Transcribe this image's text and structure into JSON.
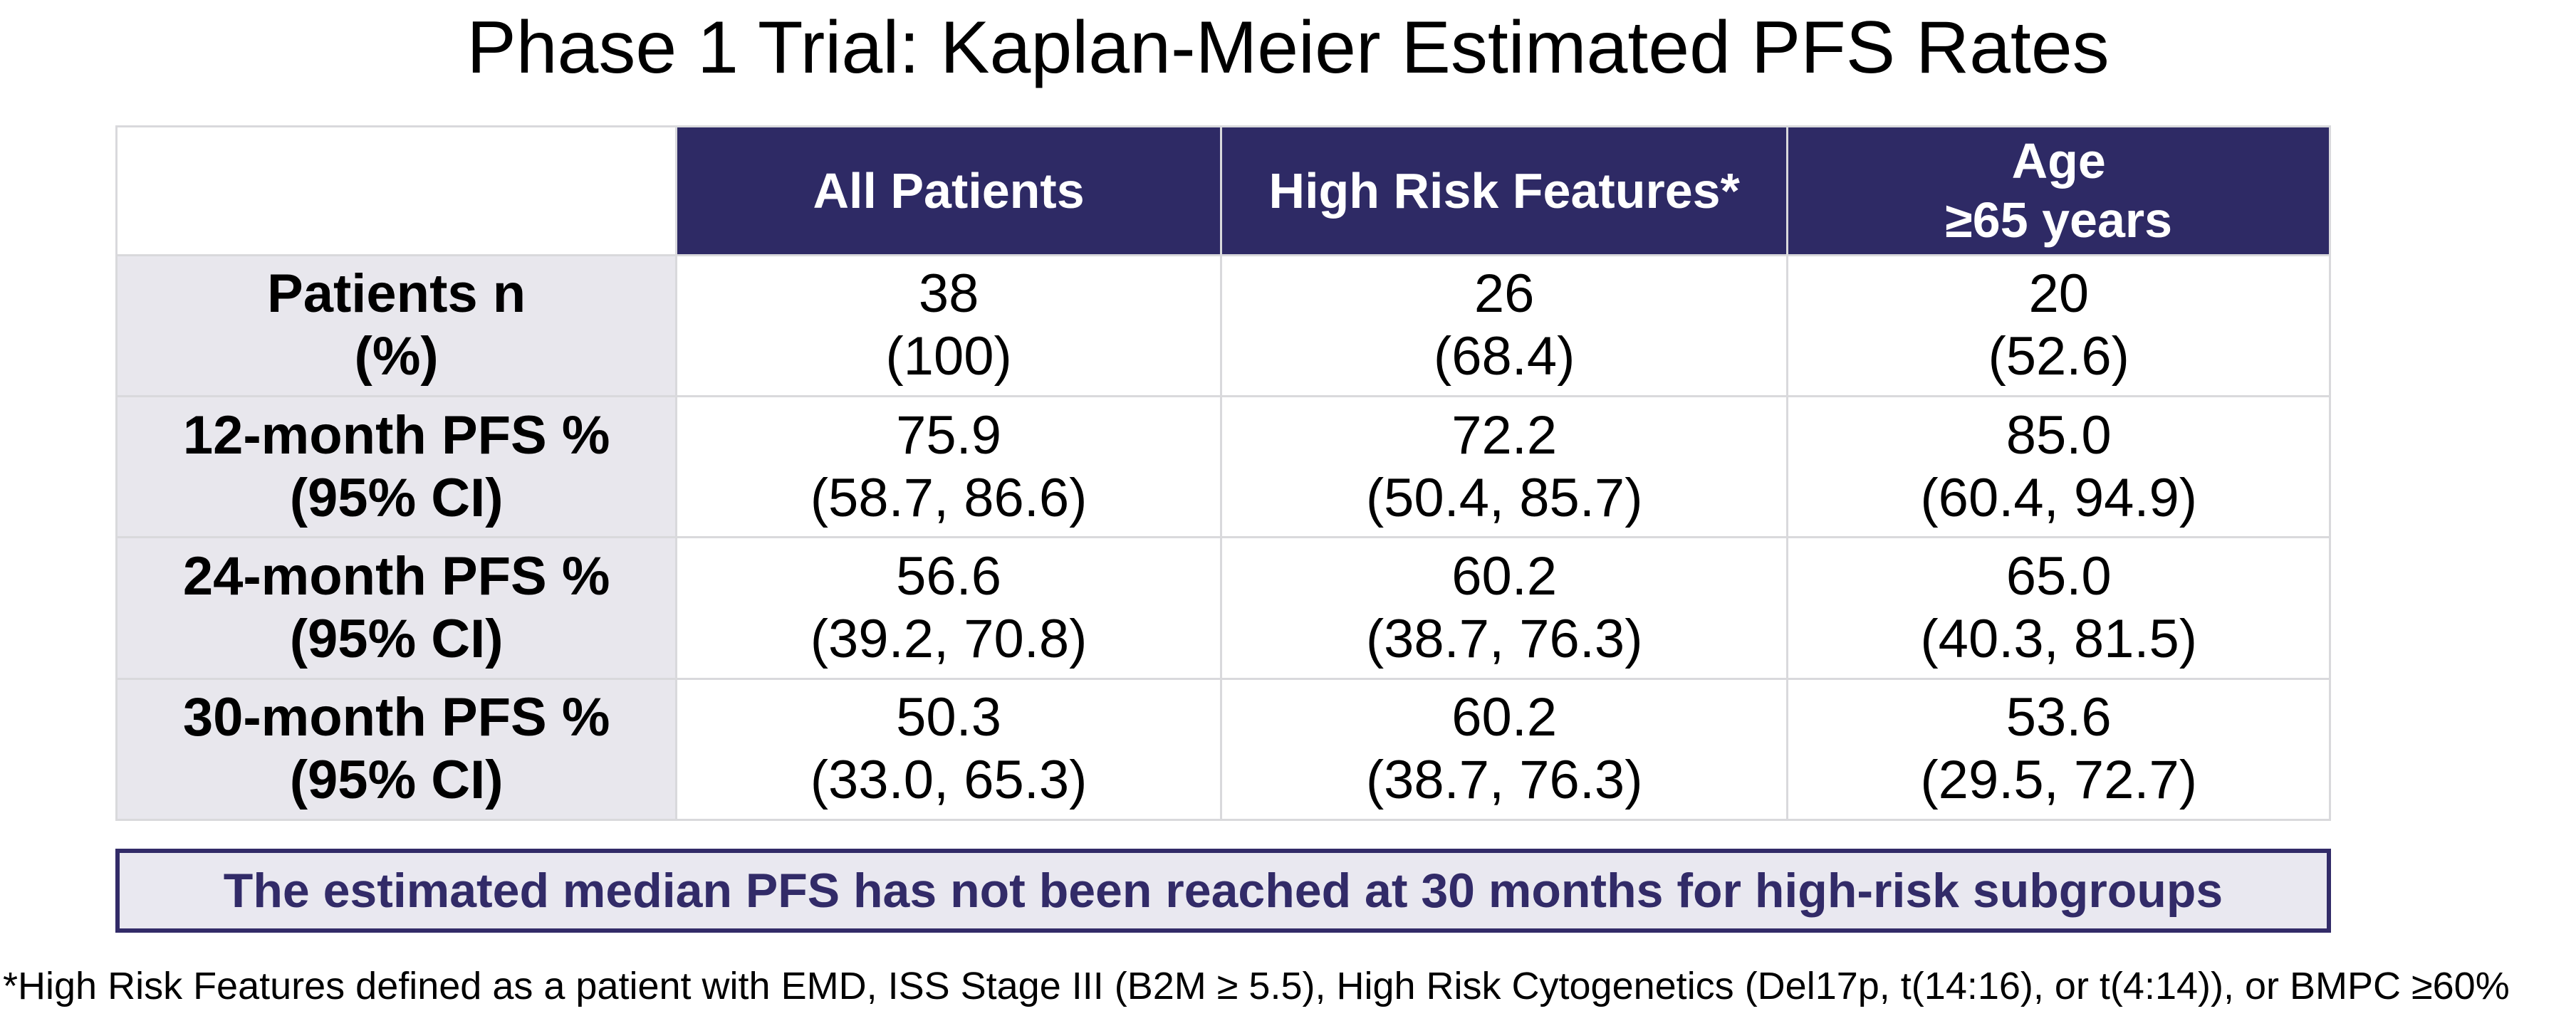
{
  "title": "Phase 1 Trial: Kaplan-Meier Estimated PFS Rates",
  "banner": "The estimated median PFS has not been reached at 30 months for high-risk subgroups",
  "footnote": "*High Risk Features defined as a patient with EMD, ISS Stage III (B2M ≥ 5.5), High Risk Cytogenetics (Del17p, t(14:16), or t(4:14)), or BMPC ≥60%",
  "colors": {
    "header_bg": "#2E2A65",
    "header_text": "#FFFFFF",
    "label_bg": "#E8E7ED",
    "gridline": "#D9D9DC",
    "banner_bg": "#E9E8F0",
    "banner_border": "#322B68",
    "banner_text": "#322B68",
    "body_text": "#000000"
  },
  "table": {
    "headers": {
      "corner": "",
      "all_patients": "All Patients",
      "high_risk": "High Risk Features*",
      "age_line1": "Age",
      "age_line2": "≥65 years"
    },
    "rows": [
      {
        "label": "Patients n",
        "sublabel": "(%)",
        "cells": [
          {
            "value": "38",
            "ci": "(100)"
          },
          {
            "value": "26",
            "ci": "(68.4)"
          },
          {
            "value": "20",
            "ci": "(52.6)"
          }
        ]
      },
      {
        "label": "12-month PFS %",
        "sublabel": "(95% CI)",
        "cells": [
          {
            "value": "75.9",
            "ci": "(58.7, 86.6)"
          },
          {
            "value": "72.2",
            "ci": "(50.4, 85.7)"
          },
          {
            "value": "85.0",
            "ci": "(60.4, 94.9)"
          }
        ]
      },
      {
        "label": "24-month PFS %",
        "sublabel": "(95% CI)",
        "cells": [
          {
            "value": "56.6",
            "ci": "(39.2, 70.8)"
          },
          {
            "value": "60.2",
            "ci": "(38.7, 76.3)"
          },
          {
            "value": "65.0",
            "ci": "(40.3, 81.5)"
          }
        ]
      },
      {
        "label": "30-month PFS %",
        "sublabel": "(95% CI)",
        "cells": [
          {
            "value": "50.3",
            "ci": "(33.0, 65.3)"
          },
          {
            "value": "60.2",
            "ci": "(38.7, 76.3)"
          },
          {
            "value": "53.6",
            "ci": "(29.5, 72.7)"
          }
        ]
      }
    ]
  }
}
